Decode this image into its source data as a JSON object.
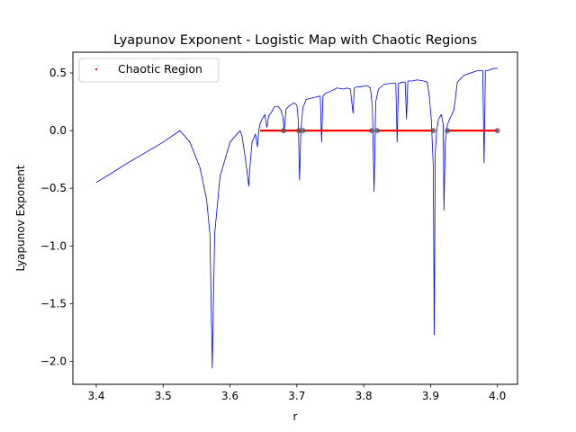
{
  "chart_data": {
    "type": "line",
    "title": "Lyapunov Exponent - Logistic Map with Chaotic Regions",
    "xlabel": "r",
    "ylabel": "Lyapunov Exponent",
    "xlim": [
      3.365,
      4.03
    ],
    "ylim": [
      -2.2,
      0.68
    ],
    "xticks": [
      3.4,
      3.5,
      3.6,
      3.7,
      3.8,
      3.9,
      4.0
    ],
    "yticks": [
      -2.0,
      -1.5,
      -1.0,
      -0.5,
      0.0,
      0.5
    ],
    "xtick_labels": [
      "3.4",
      "3.5",
      "3.6",
      "3.7",
      "3.8",
      "3.9",
      "4.0"
    ],
    "ytick_labels": [
      "−2.0",
      "−1.5",
      "−1.0",
      "−0.5",
      "0.0",
      "0.5"
    ],
    "grid": false,
    "legend": {
      "position": "upper-left",
      "entries": [
        "Chaotic Region"
      ]
    },
    "series": [
      {
        "role": "lyapunov-curve",
        "color": "#0000ff",
        "x": [
          3.4,
          3.45,
          3.5,
          3.525,
          3.54,
          3.555,
          3.565,
          3.57,
          3.5735,
          3.577,
          3.585,
          3.6,
          3.615,
          3.618,
          3.622,
          3.626,
          3.628,
          3.63,
          3.633,
          3.638,
          3.641,
          3.643,
          3.645,
          3.648,
          3.652,
          3.655,
          3.658,
          3.662,
          3.667,
          3.672,
          3.676,
          3.679,
          3.681,
          3.684,
          3.69,
          3.696,
          3.7,
          3.702,
          3.704,
          3.706,
          3.709,
          3.714,
          3.72,
          3.728,
          3.735,
          3.737,
          3.739,
          3.742,
          3.75,
          3.76,
          3.77,
          3.775,
          3.78,
          3.784,
          3.786,
          3.79,
          3.795,
          3.805,
          3.81,
          3.813,
          3.8155,
          3.818,
          3.822,
          3.83,
          3.84,
          3.848,
          3.85,
          3.852,
          3.858,
          3.862,
          3.864,
          3.866,
          3.872,
          3.88,
          3.89,
          3.895,
          3.898,
          3.901,
          3.904,
          3.9055,
          3.907,
          3.909,
          3.912,
          3.916,
          3.919,
          3.92,
          3.922,
          3.925,
          3.93,
          3.935,
          3.94,
          3.95,
          3.96,
          3.97,
          3.978,
          3.98,
          3.982,
          3.985,
          3.99,
          3.995,
          4.0
        ],
        "y": [
          -0.45,
          -0.27,
          -0.1,
          0.0,
          -0.1,
          -0.32,
          -0.6,
          -0.9,
          -2.06,
          -0.9,
          -0.4,
          -0.1,
          0.0,
          -0.05,
          -0.2,
          -0.38,
          -0.48,
          -0.3,
          -0.1,
          -0.03,
          -0.14,
          0.0,
          0.06,
          0.1,
          0.14,
          0.03,
          0.13,
          0.16,
          0.21,
          0.21,
          0.18,
          0.12,
          0.0,
          0.19,
          0.22,
          0.24,
          0.22,
          0.1,
          -0.43,
          0.0,
          0.2,
          0.27,
          0.28,
          0.29,
          0.3,
          -0.1,
          0.3,
          0.32,
          0.34,
          0.37,
          0.36,
          0.37,
          0.36,
          0.15,
          0.37,
          0.38,
          0.38,
          0.39,
          0.37,
          0.2,
          -0.53,
          0.25,
          0.36,
          0.4,
          0.41,
          0.41,
          -0.1,
          0.41,
          0.42,
          0.42,
          0.1,
          0.43,
          0.43,
          0.44,
          0.43,
          0.42,
          0.3,
          0.1,
          -0.3,
          -1.77,
          -0.2,
          0.0,
          0.1,
          0.14,
          0.05,
          -0.69,
          -0.1,
          0.05,
          0.12,
          0.18,
          0.42,
          0.48,
          0.5,
          0.52,
          0.52,
          -0.28,
          0.52,
          0.52,
          0.53,
          0.54,
          0.54
        ]
      }
    ],
    "chaotic_region": {
      "name": "Chaotic Region",
      "color": "#ff0000",
      "y": 0.0,
      "segments": [
        [
          3.645,
          3.705
        ],
        [
          3.709,
          3.812
        ],
        [
          3.82,
          3.904
        ],
        [
          3.925,
          4.0
        ]
      ]
    },
    "highlight_points": {
      "color": "#555555",
      "x": [
        3.68,
        3.703,
        3.709,
        3.812,
        3.82,
        3.904,
        3.925,
        4.0
      ],
      "y": [
        0.0,
        0.0,
        0.0,
        0.0,
        0.0,
        0.0,
        0.0,
        0.0
      ]
    }
  }
}
